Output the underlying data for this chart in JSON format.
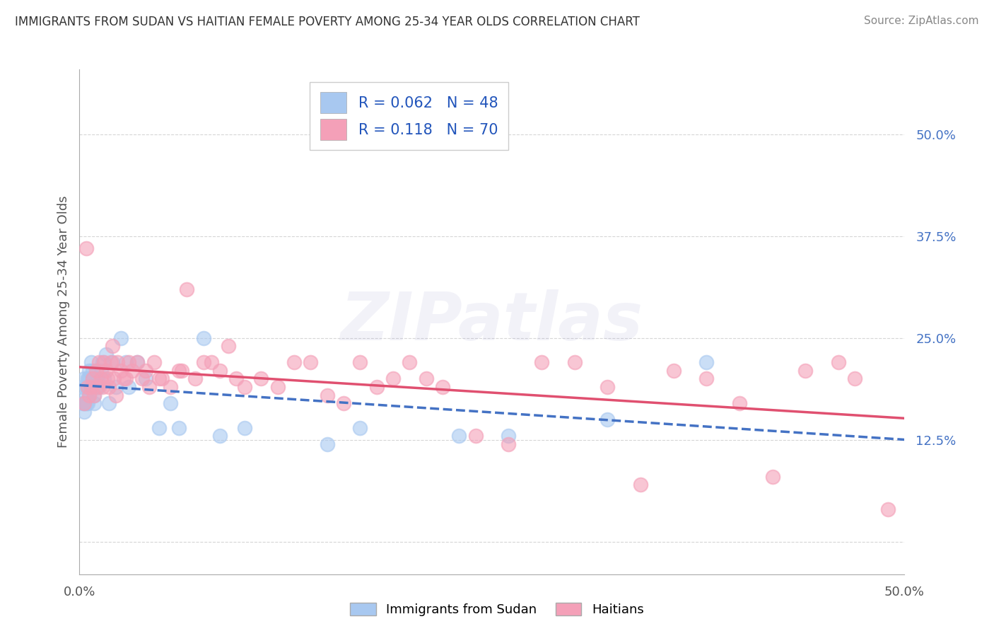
{
  "title": "IMMIGRANTS FROM SUDAN VS HAITIAN FEMALE POVERTY AMONG 25-34 YEAR OLDS CORRELATION CHART",
  "source": "Source: ZipAtlas.com",
  "ylabel": "Female Poverty Among 25-34 Year Olds",
  "xlim": [
    0.0,
    0.5
  ],
  "ylim": [
    -0.04,
    0.58
  ],
  "ytick_positions": [
    0.0,
    0.125,
    0.25,
    0.375,
    0.5
  ],
  "ytick_labels": [
    "",
    "12.5%",
    "25.0%",
    "37.5%",
    "50.0%"
  ],
  "grid_color": "#cccccc",
  "background_color": "#ffffff",
  "watermark_text": "ZIPatlas",
  "watermark_alpha": 0.12,
  "watermark_color": "#9999cc",
  "series": [
    {
      "name": "Immigrants from Sudan",
      "R": 0.062,
      "N": 48,
      "color_scatter": "#a8c8f0",
      "color_line": "#4472c4",
      "linestyle": "--",
      "x": [
        0.002,
        0.002,
        0.003,
        0.003,
        0.003,
        0.004,
        0.004,
        0.004,
        0.005,
        0.005,
        0.005,
        0.006,
        0.006,
        0.006,
        0.007,
        0.007,
        0.008,
        0.008,
        0.009,
        0.009,
        0.01,
        0.01,
        0.011,
        0.012,
        0.013,
        0.014,
        0.015,
        0.016,
        0.018,
        0.02,
        0.022,
        0.025,
        0.028,
        0.03,
        0.035,
        0.04,
        0.048,
        0.055,
        0.06,
        0.075,
        0.085,
        0.1,
        0.15,
        0.17,
        0.23,
        0.26,
        0.32,
        0.38
      ],
      "y": [
        0.17,
        0.19,
        0.2,
        0.17,
        0.16,
        0.19,
        0.18,
        0.17,
        0.2,
        0.19,
        0.17,
        0.21,
        0.2,
        0.18,
        0.22,
        0.19,
        0.2,
        0.21,
        0.18,
        0.17,
        0.2,
        0.19,
        0.2,
        0.19,
        0.21,
        0.22,
        0.2,
        0.23,
        0.17,
        0.22,
        0.19,
        0.25,
        0.22,
        0.19,
        0.22,
        0.2,
        0.14,
        0.17,
        0.14,
        0.25,
        0.13,
        0.14,
        0.12,
        0.14,
        0.13,
        0.13,
        0.15,
        0.22
      ]
    },
    {
      "name": "Haitians",
      "R": 0.118,
      "N": 70,
      "color_scatter": "#f4a0b8",
      "color_line": "#e05070",
      "linestyle": "-",
      "x": [
        0.003,
        0.004,
        0.005,
        0.006,
        0.007,
        0.008,
        0.009,
        0.01,
        0.011,
        0.012,
        0.013,
        0.014,
        0.015,
        0.016,
        0.017,
        0.018,
        0.019,
        0.02,
        0.021,
        0.022,
        0.023,
        0.025,
        0.027,
        0.028,
        0.03,
        0.032,
        0.035,
        0.038,
        0.04,
        0.042,
        0.045,
        0.048,
        0.05,
        0.055,
        0.06,
        0.062,
        0.065,
        0.07,
        0.075,
        0.08,
        0.085,
        0.09,
        0.095,
        0.1,
        0.11,
        0.12,
        0.13,
        0.14,
        0.15,
        0.16,
        0.17,
        0.18,
        0.19,
        0.2,
        0.21,
        0.22,
        0.24,
        0.26,
        0.28,
        0.3,
        0.32,
        0.34,
        0.36,
        0.38,
        0.4,
        0.42,
        0.44,
        0.46,
        0.47,
        0.49
      ],
      "y": [
        0.17,
        0.36,
        0.19,
        0.18,
        0.19,
        0.2,
        0.18,
        0.21,
        0.19,
        0.22,
        0.2,
        0.19,
        0.22,
        0.21,
        0.2,
        0.19,
        0.22,
        0.24,
        0.2,
        0.18,
        0.22,
        0.21,
        0.2,
        0.2,
        0.22,
        0.21,
        0.22,
        0.2,
        0.21,
        0.19,
        0.22,
        0.2,
        0.2,
        0.19,
        0.21,
        0.21,
        0.31,
        0.2,
        0.22,
        0.22,
        0.21,
        0.24,
        0.2,
        0.19,
        0.2,
        0.19,
        0.22,
        0.22,
        0.18,
        0.17,
        0.22,
        0.19,
        0.2,
        0.22,
        0.2,
        0.19,
        0.13,
        0.12,
        0.22,
        0.22,
        0.19,
        0.07,
        0.21,
        0.2,
        0.17,
        0.08,
        0.21,
        0.22,
        0.2,
        0.04
      ]
    }
  ]
}
